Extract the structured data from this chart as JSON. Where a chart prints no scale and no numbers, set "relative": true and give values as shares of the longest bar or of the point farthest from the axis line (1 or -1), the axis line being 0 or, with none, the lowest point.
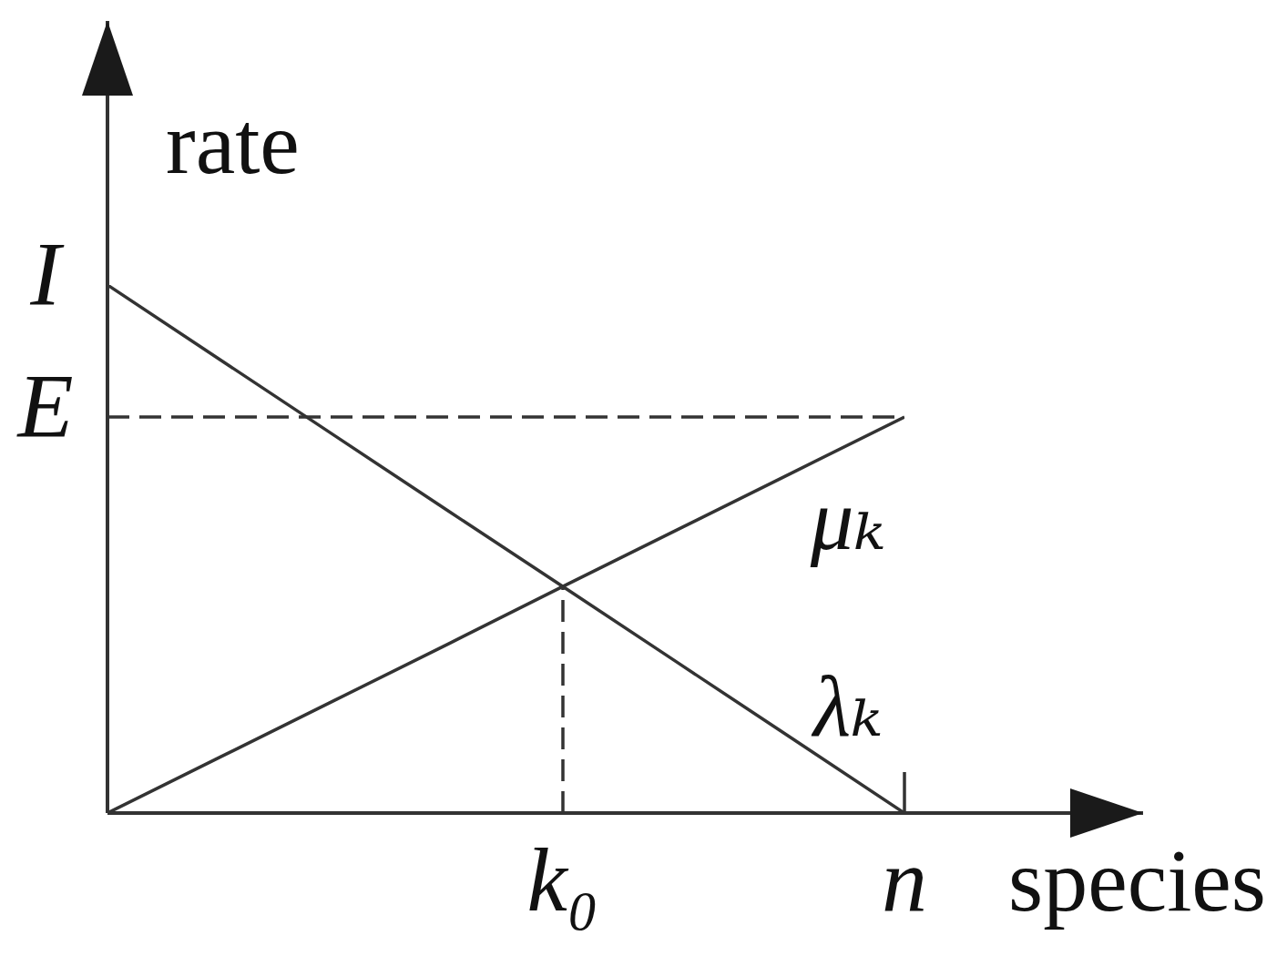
{
  "chart_data": {
    "type": "line",
    "relative": true,
    "xlabel": "species",
    "ylabel": "rate",
    "categories": [
      null,
      null,
      null,
      null,
      "k₀",
      null,
      null,
      "n"
    ],
    "series": [
      {
        "name": "μₖ",
        "color": "#333333",
        "values": [
          0,
          0.107,
          0.214,
          0.321,
          0.429,
          0.536,
          0.643,
          0.75
        ]
      },
      {
        "name": "λₖ",
        "color": "#333333",
        "values": [
          1,
          0.857,
          0.714,
          0.571,
          0.429,
          0.286,
          0.143,
          0
        ]
      },
      {
        "name": "E",
        "color": "#333333",
        "values": [
          0.75,
          0.75,
          0.75,
          0.75,
          0.75,
          0.75,
          0.75,
          0.75
        ],
        "line_style": "dashed"
      },
      {
        "color": "#333333",
        "x": [
          "k₀",
          "k₀"
        ],
        "values": [
          0,
          0.429
        ],
        "line_style": "dashed"
      }
    ],
    "annotations": [
      "I"
    ]
  }
}
